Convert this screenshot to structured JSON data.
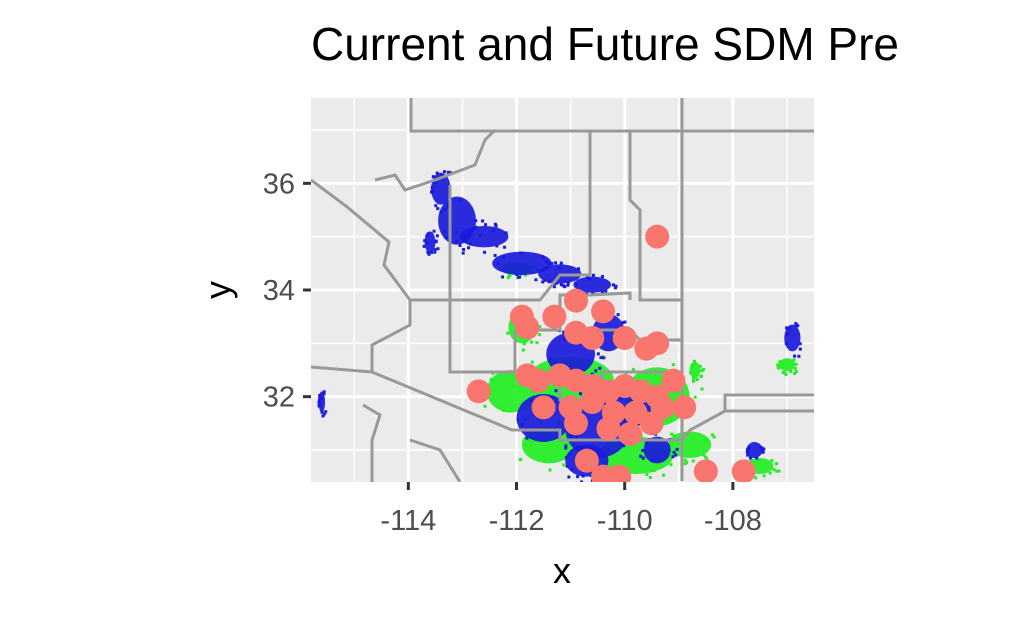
{
  "title": "Current and Future SDM Pre",
  "chart_data": {
    "type": "scatter",
    "title": "Current and Future SDM Pre",
    "xlabel": "x",
    "ylabel": "y",
    "xlim": [
      -115.8,
      -106.5
    ],
    "ylim": [
      30.4,
      37.6
    ],
    "x_ticks": [
      -114,
      -112,
      -110,
      -108
    ],
    "y_ticks": [
      32,
      34,
      36
    ],
    "x_tick_labels": [
      "-114",
      "-112",
      "-110",
      "-108"
    ],
    "y_tick_labels": [
      "32",
      "34",
      "36"
    ],
    "grid": true,
    "colors": {
      "panel_background": "#ebebeb",
      "grid": "#ffffff",
      "borders": "#999999",
      "current_range": "#1a1adc",
      "future_range": "#22ee22",
      "occurrence_points": "#f8766d"
    },
    "range_patches": {
      "current": [
        [
          -113.4,
          35.9,
          0.18,
          0.3
        ],
        [
          -113.1,
          35.3,
          0.35,
          0.45
        ],
        [
          -112.6,
          35.0,
          0.45,
          0.2
        ],
        [
          -111.9,
          34.5,
          0.55,
          0.22
        ],
        [
          -111.2,
          34.3,
          0.4,
          0.18
        ],
        [
          -110.6,
          34.1,
          0.35,
          0.15
        ],
        [
          -111.0,
          32.8,
          0.45,
          0.4
        ],
        [
          -110.3,
          33.2,
          0.3,
          0.35
        ],
        [
          -111.5,
          31.6,
          0.5,
          0.45
        ],
        [
          -110.5,
          31.4,
          0.6,
          0.55
        ],
        [
          -109.8,
          31.8,
          0.4,
          0.35
        ],
        [
          -110.7,
          30.8,
          0.4,
          0.3
        ],
        [
          -109.4,
          31.0,
          0.25,
          0.25
        ],
        [
          -106.9,
          33.1,
          0.15,
          0.25
        ],
        [
          -115.6,
          31.9,
          0.06,
          0.2
        ],
        [
          -107.6,
          31.0,
          0.15,
          0.15
        ],
        [
          -113.6,
          34.9,
          0.1,
          0.2
        ]
      ],
      "future": [
        [
          -112.0,
          34.4,
          0.3,
          0.12
        ],
        [
          -111.9,
          33.3,
          0.25,
          0.3
        ],
        [
          -112.1,
          32.1,
          0.45,
          0.4
        ],
        [
          -111.0,
          32.3,
          0.8,
          0.45
        ],
        [
          -109.4,
          32.0,
          0.6,
          0.55
        ],
        [
          -111.4,
          31.1,
          0.5,
          0.35
        ],
        [
          -109.8,
          30.9,
          0.7,
          0.35
        ],
        [
          -108.8,
          31.1,
          0.4,
          0.25
        ],
        [
          -107.5,
          30.7,
          0.25,
          0.15
        ],
        [
          -107.0,
          32.6,
          0.15,
          0.12
        ],
        [
          -108.7,
          32.5,
          0.1,
          0.15
        ]
      ]
    },
    "occurrences": {
      "x": [
        -109.4,
        -110.9,
        -111.9,
        -111.8,
        -111.3,
        -110.9,
        -110.6,
        -110.0,
        -109.6,
        -109.4,
        -112.7,
        -111.6,
        -111.2,
        -110.9,
        -110.6,
        -110.3,
        -110.0,
        -109.7,
        -109.4,
        -109.1,
        -111.5,
        -111.0,
        -110.6,
        -110.2,
        -109.8,
        -109.3,
        -110.9,
        -110.3,
        -109.5,
        -108.5,
        -107.8,
        -110.4,
        -110.1,
        -111.8,
        -110.4,
        -110.7,
        -109.9,
        -108.9
      ],
      "y": [
        35.0,
        33.8,
        33.5,
        33.3,
        33.5,
        33.2,
        33.1,
        33.1,
        32.9,
        33.0,
        32.1,
        32.3,
        32.4,
        32.3,
        32.2,
        32.1,
        32.2,
        32.1,
        32.0,
        32.3,
        31.8,
        31.8,
        31.9,
        31.7,
        31.7,
        31.8,
        31.5,
        31.4,
        31.5,
        30.6,
        30.6,
        30.5,
        30.5,
        32.4,
        33.6,
        30.8,
        31.3,
        31.8
      ]
    }
  }
}
